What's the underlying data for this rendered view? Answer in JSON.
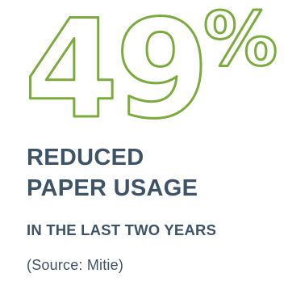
{
  "stat": {
    "number": "49",
    "percent_sign": "%",
    "headline_line1": "REDUCED",
    "headline_line2": "PAPER USAGE",
    "subline": "IN THE LAST TWO YEARS",
    "source": "(Source: Mitie)"
  },
  "colors": {
    "accent_green": "#7bab3c",
    "text_navy": "#3e5268",
    "background": "#ffffff"
  }
}
